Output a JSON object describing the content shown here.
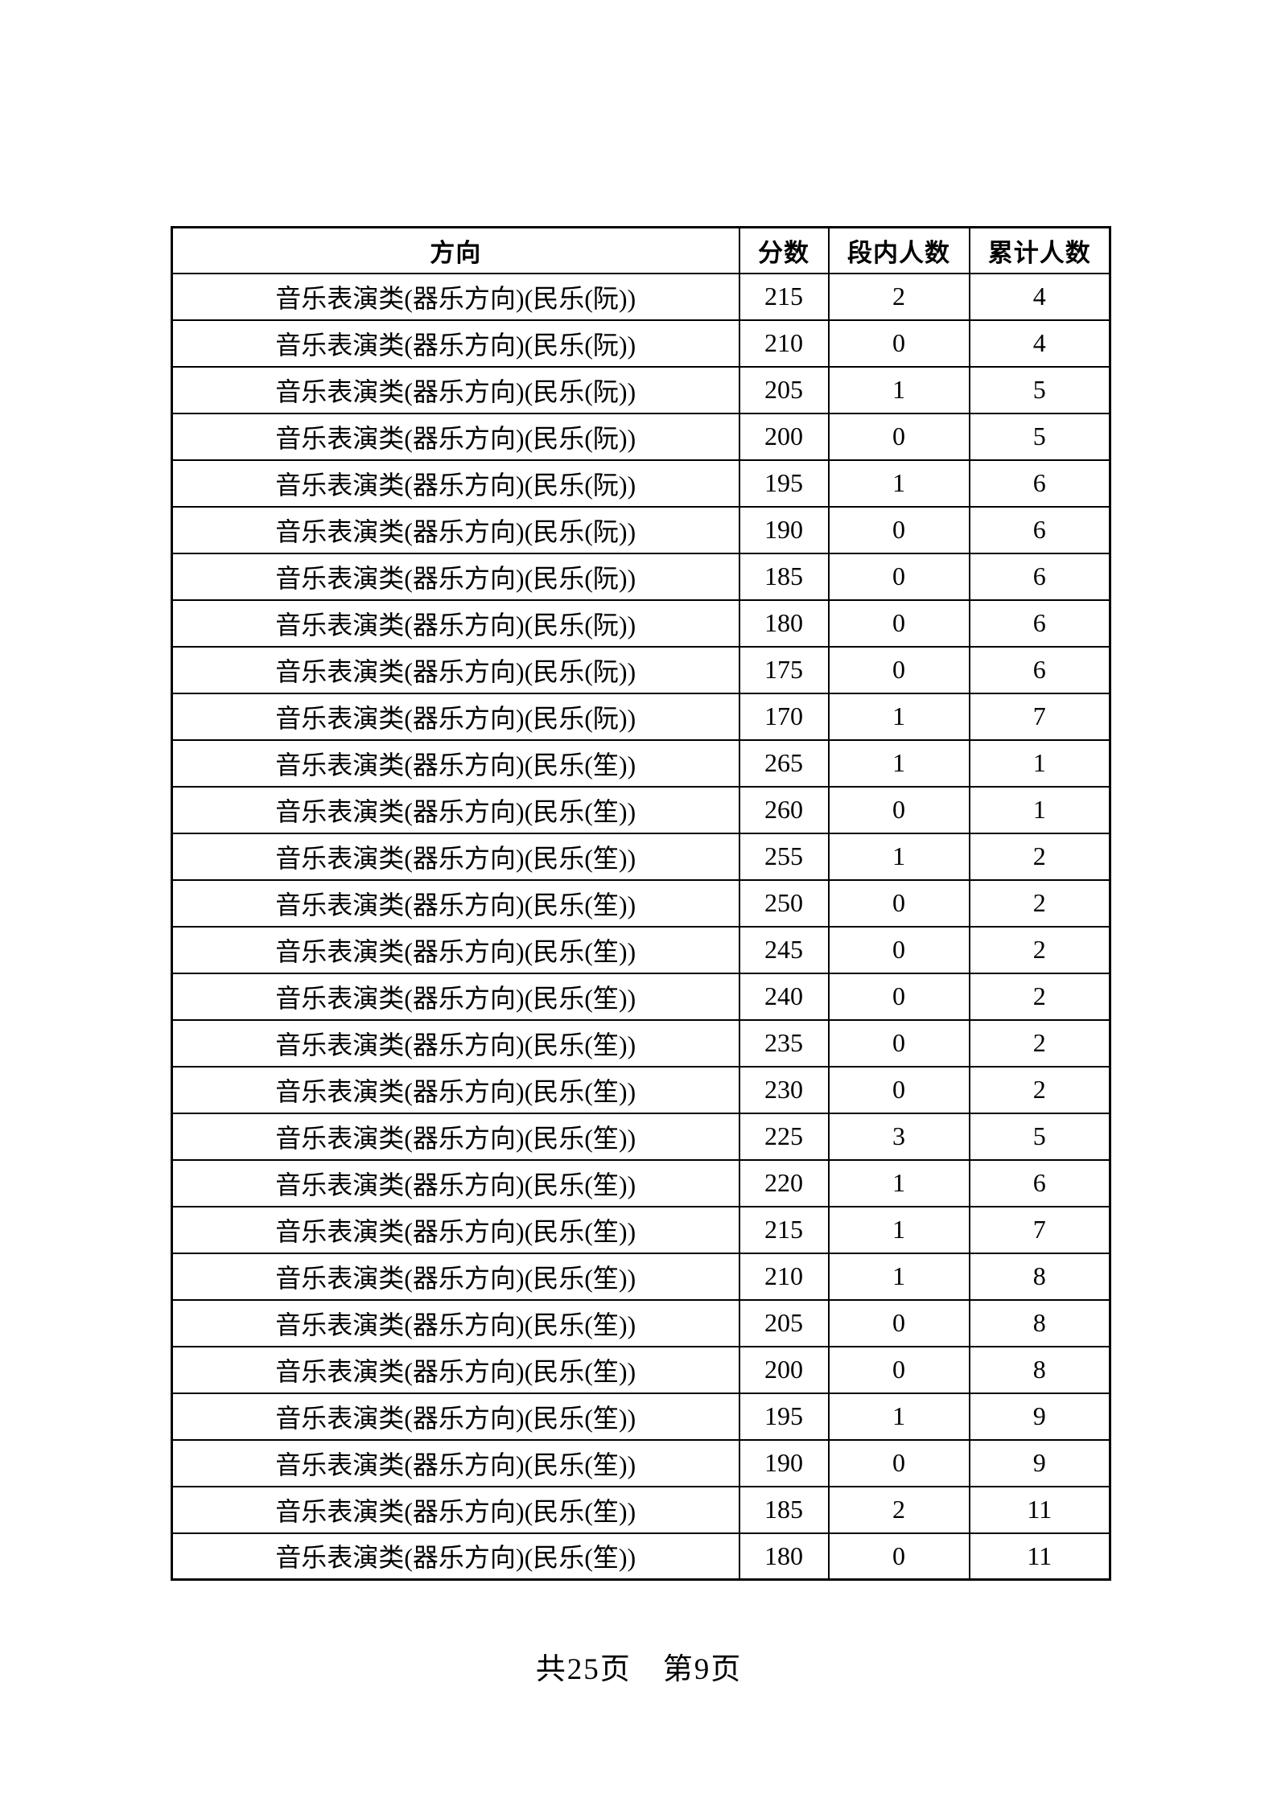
{
  "page": {
    "footer": "共25页　第9页"
  },
  "table": {
    "headers": [
      "方向",
      "分数",
      "段内人数",
      "累计人数"
    ],
    "rows": [
      {
        "direction": "音乐表演类(器乐方向)(民乐(阮))",
        "score": 215,
        "in_segment": 2,
        "cumulative": 4
      },
      {
        "direction": "音乐表演类(器乐方向)(民乐(阮))",
        "score": 210,
        "in_segment": 0,
        "cumulative": 4
      },
      {
        "direction": "音乐表演类(器乐方向)(民乐(阮))",
        "score": 205,
        "in_segment": 1,
        "cumulative": 5
      },
      {
        "direction": "音乐表演类(器乐方向)(民乐(阮))",
        "score": 200,
        "in_segment": 0,
        "cumulative": 5
      },
      {
        "direction": "音乐表演类(器乐方向)(民乐(阮))",
        "score": 195,
        "in_segment": 1,
        "cumulative": 6
      },
      {
        "direction": "音乐表演类(器乐方向)(民乐(阮))",
        "score": 190,
        "in_segment": 0,
        "cumulative": 6
      },
      {
        "direction": "音乐表演类(器乐方向)(民乐(阮))",
        "score": 185,
        "in_segment": 0,
        "cumulative": 6
      },
      {
        "direction": "音乐表演类(器乐方向)(民乐(阮))",
        "score": 180,
        "in_segment": 0,
        "cumulative": 6
      },
      {
        "direction": "音乐表演类(器乐方向)(民乐(阮))",
        "score": 175,
        "in_segment": 0,
        "cumulative": 6
      },
      {
        "direction": "音乐表演类(器乐方向)(民乐(阮))",
        "score": 170,
        "in_segment": 1,
        "cumulative": 7
      },
      {
        "direction": "音乐表演类(器乐方向)(民乐(笙))",
        "score": 265,
        "in_segment": 1,
        "cumulative": 1
      },
      {
        "direction": "音乐表演类(器乐方向)(民乐(笙))",
        "score": 260,
        "in_segment": 0,
        "cumulative": 1
      },
      {
        "direction": "音乐表演类(器乐方向)(民乐(笙))",
        "score": 255,
        "in_segment": 1,
        "cumulative": 2
      },
      {
        "direction": "音乐表演类(器乐方向)(民乐(笙))",
        "score": 250,
        "in_segment": 0,
        "cumulative": 2
      },
      {
        "direction": "音乐表演类(器乐方向)(民乐(笙))",
        "score": 245,
        "in_segment": 0,
        "cumulative": 2
      },
      {
        "direction": "音乐表演类(器乐方向)(民乐(笙))",
        "score": 240,
        "in_segment": 0,
        "cumulative": 2
      },
      {
        "direction": "音乐表演类(器乐方向)(民乐(笙))",
        "score": 235,
        "in_segment": 0,
        "cumulative": 2
      },
      {
        "direction": "音乐表演类(器乐方向)(民乐(笙))",
        "score": 230,
        "in_segment": 0,
        "cumulative": 2
      },
      {
        "direction": "音乐表演类(器乐方向)(民乐(笙))",
        "score": 225,
        "in_segment": 3,
        "cumulative": 5
      },
      {
        "direction": "音乐表演类(器乐方向)(民乐(笙))",
        "score": 220,
        "in_segment": 1,
        "cumulative": 6
      },
      {
        "direction": "音乐表演类(器乐方向)(民乐(笙))",
        "score": 215,
        "in_segment": 1,
        "cumulative": 7
      },
      {
        "direction": "音乐表演类(器乐方向)(民乐(笙))",
        "score": 210,
        "in_segment": 1,
        "cumulative": 8
      },
      {
        "direction": "音乐表演类(器乐方向)(民乐(笙))",
        "score": 205,
        "in_segment": 0,
        "cumulative": 8
      },
      {
        "direction": "音乐表演类(器乐方向)(民乐(笙))",
        "score": 200,
        "in_segment": 0,
        "cumulative": 8
      },
      {
        "direction": "音乐表演类(器乐方向)(民乐(笙))",
        "score": 195,
        "in_segment": 1,
        "cumulative": 9
      },
      {
        "direction": "音乐表演类(器乐方向)(民乐(笙))",
        "score": 190,
        "in_segment": 0,
        "cumulative": 9
      },
      {
        "direction": "音乐表演类(器乐方向)(民乐(笙))",
        "score": 185,
        "in_segment": 2,
        "cumulative": 11
      },
      {
        "direction": "音乐表演类(器乐方向)(民乐(笙))",
        "score": 180,
        "in_segment": 0,
        "cumulative": 11
      }
    ]
  }
}
